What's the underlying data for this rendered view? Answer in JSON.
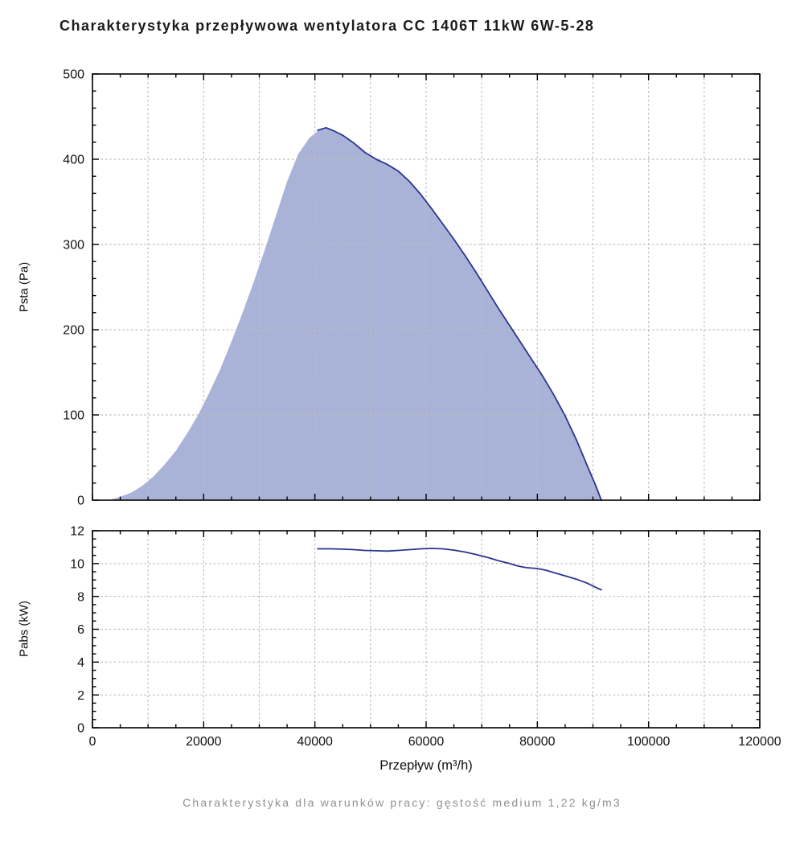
{
  "title": "Charakterystyka przepływowa wentylatora CC 1406T 11kW 6W-5-28",
  "footer": "Charakterystyka dla warunków pracy: gęstość medium 1,22 kg/m3",
  "xlabel": "Przepływ (m³/h)",
  "colors": {
    "curve": "#2a3590",
    "area_fill": "#a9b3d7",
    "grid": "#bdbdbd",
    "axis": "#000000"
  },
  "chart_data": [
    {
      "type": "area",
      "name": "psta",
      "title": "",
      "ylabel": "Psta (Pa)",
      "xlabel": "Przepływ (m³/h)",
      "xlim": [
        0,
        120000
      ],
      "ylim": [
        0,
        500
      ],
      "x_ticks": [
        0,
        20000,
        40000,
        60000,
        80000,
        100000,
        120000
      ],
      "y_ticks": [
        0,
        100,
        200,
        300,
        400,
        500
      ],
      "x_minor_step": 5000,
      "y_minor_step": 20,
      "x_grid_step": 10000,
      "y_grid_step": 100,
      "grid": true,
      "line_color": "#2a3590",
      "fill_color": "#a9b3d7",
      "fill_points": [
        [
          3000,
          0
        ],
        [
          5000,
          4
        ],
        [
          7000,
          9
        ],
        [
          9000,
          17
        ],
        [
          11000,
          28
        ],
        [
          13000,
          42
        ],
        [
          15000,
          58
        ],
        [
          17000,
          78
        ],
        [
          19000,
          100
        ],
        [
          21000,
          126
        ],
        [
          23000,
          154
        ],
        [
          25000,
          186
        ],
        [
          27000,
          220
        ],
        [
          29000,
          256
        ],
        [
          31000,
          294
        ],
        [
          33000,
          334
        ],
        [
          35000,
          374
        ],
        [
          37000,
          406
        ],
        [
          39000,
          425
        ],
        [
          40500,
          433
        ]
      ],
      "line_points": [
        [
          40500,
          434
        ],
        [
          42000,
          437
        ],
        [
          43500,
          433
        ],
        [
          45000,
          428
        ],
        [
          47000,
          419
        ],
        [
          49000,
          408
        ],
        [
          51000,
          400
        ],
        [
          53000,
          394
        ],
        [
          55000,
          386
        ],
        [
          57000,
          374
        ],
        [
          59000,
          359
        ],
        [
          61000,
          342
        ],
        [
          63000,
          324
        ],
        [
          65000,
          306
        ],
        [
          67000,
          287
        ],
        [
          69000,
          267
        ],
        [
          71000,
          246
        ],
        [
          73000,
          225
        ],
        [
          75000,
          205
        ],
        [
          77000,
          185
        ],
        [
          79000,
          165
        ],
        [
          81000,
          145
        ],
        [
          83000,
          123
        ],
        [
          85000,
          99
        ],
        [
          87000,
          71
        ],
        [
          89000,
          40
        ],
        [
          90500,
          17
        ],
        [
          91500,
          0
        ]
      ]
    },
    {
      "type": "line",
      "name": "pabs",
      "title": "",
      "ylabel": "Pabs (kW)",
      "xlabel": "Przepływ (m³/h)",
      "xlim": [
        0,
        120000
      ],
      "ylim": [
        0,
        12
      ],
      "x_ticks": [
        0,
        20000,
        40000,
        60000,
        80000,
        100000,
        120000
      ],
      "y_ticks": [
        0,
        2,
        4,
        6,
        8,
        10,
        12
      ],
      "x_minor_step": 5000,
      "y_minor_step": 0.5,
      "x_grid_step": 10000,
      "y_grid_step": 2,
      "grid": true,
      "line_color": "#2a3590",
      "line_points": [
        [
          40500,
          10.9
        ],
        [
          43000,
          10.9
        ],
        [
          45000,
          10.88
        ],
        [
          47000,
          10.85
        ],
        [
          49000,
          10.8
        ],
        [
          51000,
          10.78
        ],
        [
          53000,
          10.76
        ],
        [
          55000,
          10.8
        ],
        [
          57000,
          10.85
        ],
        [
          59000,
          10.9
        ],
        [
          61000,
          10.92
        ],
        [
          63000,
          10.9
        ],
        [
          65000,
          10.82
        ],
        [
          67000,
          10.7
        ],
        [
          69000,
          10.55
        ],
        [
          71000,
          10.38
        ],
        [
          73000,
          10.18
        ],
        [
          75000,
          10.0
        ],
        [
          76500,
          9.85
        ],
        [
          78000,
          9.75
        ],
        [
          80000,
          9.7
        ],
        [
          81500,
          9.6
        ],
        [
          83000,
          9.45
        ],
        [
          85000,
          9.25
        ],
        [
          87000,
          9.05
        ],
        [
          89000,
          8.8
        ],
        [
          90500,
          8.55
        ],
        [
          91500,
          8.4
        ]
      ]
    }
  ]
}
